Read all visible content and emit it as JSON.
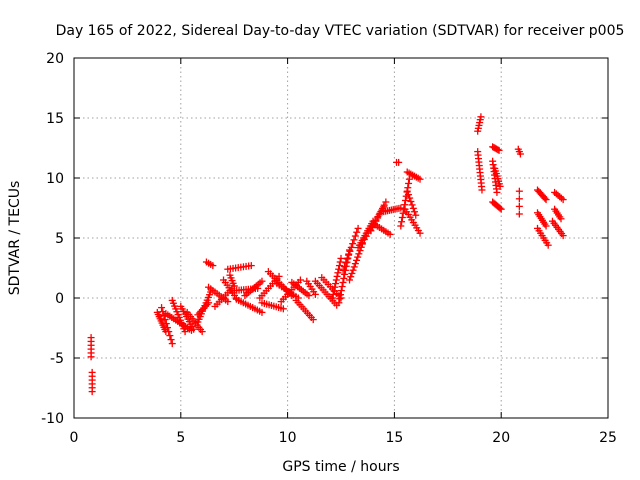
{
  "chart_data": {
    "type": "scatter",
    "title": "Day 165 of 2022, Sidereal Day-to-day VTEC variation (SDTVAR) for receiver p005",
    "xlabel": "GPS time / hours",
    "ylabel": "SDTVAR / TECUs",
    "xlim": [
      0,
      25
    ],
    "ylim": [
      -10,
      20
    ],
    "xticks": [
      "0",
      "5",
      "10",
      "15",
      "20",
      "25"
    ],
    "yticks": [
      "-10",
      "-5",
      "0",
      "5",
      "10",
      "15",
      "20"
    ],
    "grid": true,
    "marker": "plus",
    "series": [
      {
        "name": "SDTVAR",
        "color": "#ff0000",
        "segments": [
          {
            "x0": 0.8,
            "y0": -3.3,
            "x1": 0.8,
            "y1": -4.9,
            "n": 6
          },
          {
            "x0": 0.85,
            "y0": -6.2,
            "x1": 0.85,
            "y1": -7.8,
            "n": 6
          },
          {
            "x0": 3.9,
            "y0": -1.2,
            "x1": 4.3,
            "y1": -2.8,
            "n": 10
          },
          {
            "x0": 4.1,
            "y0": -0.8,
            "x1": 4.6,
            "y1": -3.8,
            "n": 10
          },
          {
            "x0": 4.3,
            "y0": -1.3,
            "x1": 5.5,
            "y1": -2.7,
            "n": 14
          },
          {
            "x0": 4.6,
            "y0": -0.2,
            "x1": 5.2,
            "y1": -2.8,
            "n": 12
          },
          {
            "x0": 5.0,
            "y0": -0.7,
            "x1": 5.6,
            "y1": -2.6,
            "n": 10
          },
          {
            "x0": 5.3,
            "y0": -1.2,
            "x1": 6.0,
            "y1": -2.8,
            "n": 10
          },
          {
            "x0": 5.8,
            "y0": -2.0,
            "x1": 6.4,
            "y1": 0.5,
            "n": 12
          },
          {
            "x0": 5.8,
            "y0": -1.4,
            "x1": 6.3,
            "y1": -0.4,
            "n": 8
          },
          {
            "x0": 6.2,
            "y0": 3.0,
            "x1": 6.5,
            "y1": 2.7,
            "n": 4
          },
          {
            "x0": 6.3,
            "y0": 0.9,
            "x1": 7.2,
            "y1": -0.3,
            "n": 10
          },
          {
            "x0": 6.6,
            "y0": -0.7,
            "x1": 7.5,
            "y1": 1.0,
            "n": 10
          },
          {
            "x0": 7.0,
            "y0": 1.5,
            "x1": 7.6,
            "y1": 0.0,
            "n": 8
          },
          {
            "x0": 7.2,
            "y0": 2.4,
            "x1": 8.3,
            "y1": 2.7,
            "n": 10
          },
          {
            "x0": 7.3,
            "y0": 1.9,
            "x1": 7.5,
            "y1": 1.0,
            "n": 5
          },
          {
            "x0": 7.4,
            "y0": 0.6,
            "x1": 8.6,
            "y1": 0.8,
            "n": 12
          },
          {
            "x0": 7.6,
            "y0": -0.1,
            "x1": 8.8,
            "y1": -1.2,
            "n": 12
          },
          {
            "x0": 8.0,
            "y0": 0.2,
            "x1": 8.8,
            "y1": 1.4,
            "n": 10
          },
          {
            "x0": 8.7,
            "y0": 0.0,
            "x1": 9.6,
            "y1": 1.8,
            "n": 10
          },
          {
            "x0": 8.8,
            "y0": -0.4,
            "x1": 9.8,
            "y1": -0.9,
            "n": 10
          },
          {
            "x0": 9.1,
            "y0": 2.2,
            "x1": 10.2,
            "y1": 0.2,
            "n": 12
          },
          {
            "x0": 9.5,
            "y0": 1.2,
            "x1": 10.5,
            "y1": 0.0,
            "n": 10
          },
          {
            "x0": 9.7,
            "y0": -0.3,
            "x1": 10.6,
            "y1": 1.5,
            "n": 10
          },
          {
            "x0": 10.2,
            "y0": 1.3,
            "x1": 11.0,
            "y1": 0.2,
            "n": 10
          },
          {
            "x0": 10.4,
            "y0": -0.2,
            "x1": 11.2,
            "y1": -1.8,
            "n": 10
          },
          {
            "x0": 10.9,
            "y0": 1.4,
            "x1": 11.3,
            "y1": 0.3,
            "n": 6
          },
          {
            "x0": 11.3,
            "y0": 1.4,
            "x1": 12.3,
            "y1": -0.6,
            "n": 12
          },
          {
            "x0": 11.6,
            "y0": 1.7,
            "x1": 12.5,
            "y1": 0.0,
            "n": 10
          },
          {
            "x0": 12.1,
            "y0": 0.0,
            "x1": 12.5,
            "y1": 3.3,
            "n": 12
          },
          {
            "x0": 12.4,
            "y0": -0.4,
            "x1": 12.9,
            "y1": 4.0,
            "n": 14
          },
          {
            "x0": 12.6,
            "y0": 2.3,
            "x1": 13.3,
            "y1": 5.8,
            "n": 12
          },
          {
            "x0": 12.9,
            "y0": 1.5,
            "x1": 13.5,
            "y1": 4.5,
            "n": 12
          },
          {
            "x0": 13.3,
            "y0": 4.2,
            "x1": 14.0,
            "y1": 6.4,
            "n": 12
          },
          {
            "x0": 13.5,
            "y0": 4.6,
            "x1": 14.5,
            "y1": 7.6,
            "n": 12
          },
          {
            "x0": 13.9,
            "y0": 5.6,
            "x1": 14.6,
            "y1": 8.0,
            "n": 10
          },
          {
            "x0": 14.1,
            "y0": 6.1,
            "x1": 14.8,
            "y1": 5.3,
            "n": 8
          },
          {
            "x0": 14.5,
            "y0": 7.2,
            "x1": 15.3,
            "y1": 7.5,
            "n": 10
          },
          {
            "x0": 15.1,
            "y0": 11.3,
            "x1": 15.2,
            "y1": 11.3,
            "n": 2
          },
          {
            "x0": 15.3,
            "y0": 6.0,
            "x1": 15.7,
            "y1": 9.9,
            "n": 12
          },
          {
            "x0": 15.5,
            "y0": 7.4,
            "x1": 16.2,
            "y1": 5.4,
            "n": 10
          },
          {
            "x0": 15.6,
            "y0": 10.5,
            "x1": 16.2,
            "y1": 9.9,
            "n": 8
          },
          {
            "x0": 15.6,
            "y0": 8.9,
            "x1": 16.0,
            "y1": 6.9,
            "n": 8
          },
          {
            "x0": 18.9,
            "y0": 13.9,
            "x1": 19.05,
            "y1": 15.1,
            "n": 6
          },
          {
            "x0": 18.9,
            "y0": 12.2,
            "x1": 19.1,
            "y1": 9.0,
            "n": 12
          },
          {
            "x0": 19.6,
            "y0": 12.6,
            "x1": 19.9,
            "y1": 12.3,
            "n": 6
          },
          {
            "x0": 19.6,
            "y0": 11.4,
            "x1": 19.8,
            "y1": 8.8,
            "n": 10
          },
          {
            "x0": 19.7,
            "y0": 10.8,
            "x1": 19.95,
            "y1": 9.3,
            "n": 8
          },
          {
            "x0": 19.6,
            "y0": 8.0,
            "x1": 20.0,
            "y1": 7.4,
            "n": 8
          },
          {
            "x0": 20.8,
            "y0": 12.4,
            "x1": 20.9,
            "y1": 12.0,
            "n": 3
          },
          {
            "x0": 20.85,
            "y0": 8.9,
            "x1": 20.85,
            "y1": 7.0,
            "n": 4
          },
          {
            "x0": 21.7,
            "y0": 9.0,
            "x1": 22.1,
            "y1": 8.2,
            "n": 8
          },
          {
            "x0": 21.7,
            "y0": 7.1,
            "x1": 22.1,
            "y1": 6.0,
            "n": 8
          },
          {
            "x0": 21.7,
            "y0": 5.8,
            "x1": 22.2,
            "y1": 4.4,
            "n": 8
          },
          {
            "x0": 22.5,
            "y0": 8.8,
            "x1": 22.9,
            "y1": 8.2,
            "n": 6
          },
          {
            "x0": 22.5,
            "y0": 7.4,
            "x1": 22.8,
            "y1": 6.6,
            "n": 6
          },
          {
            "x0": 22.4,
            "y0": 6.4,
            "x1": 22.9,
            "y1": 5.2,
            "n": 8
          }
        ]
      }
    ]
  }
}
